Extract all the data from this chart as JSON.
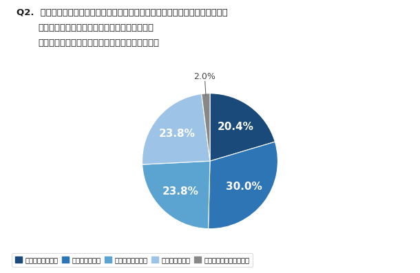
{
  "title_line1": "Q2.  あなたは、観光地やリゾート地で休暇と仕事をうまく切り替えながら行う、",
  "title_line2": "「ワーケーション」制度の取り組みについて、",
  "title_line3": "可能であれば自社での導入に興味はありますか。",
  "slices": [
    20.4,
    30.0,
    23.8,
    23.8,
    2.0
  ],
  "colors": [
    "#1a4a7a",
    "#2e75b6",
    "#5ba3d0",
    "#9dc3e6",
    "#888888"
  ],
  "labels": [
    "非常に興味がある",
    "少し興味がある",
    "あまり興味がない",
    "全く興味がない",
    "既に自社で導入している"
  ],
  "pct_labels": [
    "20.4%",
    "30.0%",
    "23.8%",
    "23.8%",
    "2.0%"
  ],
  "background_color": "#ffffff",
  "startangle": 90,
  "outside_label_color": "#444444"
}
